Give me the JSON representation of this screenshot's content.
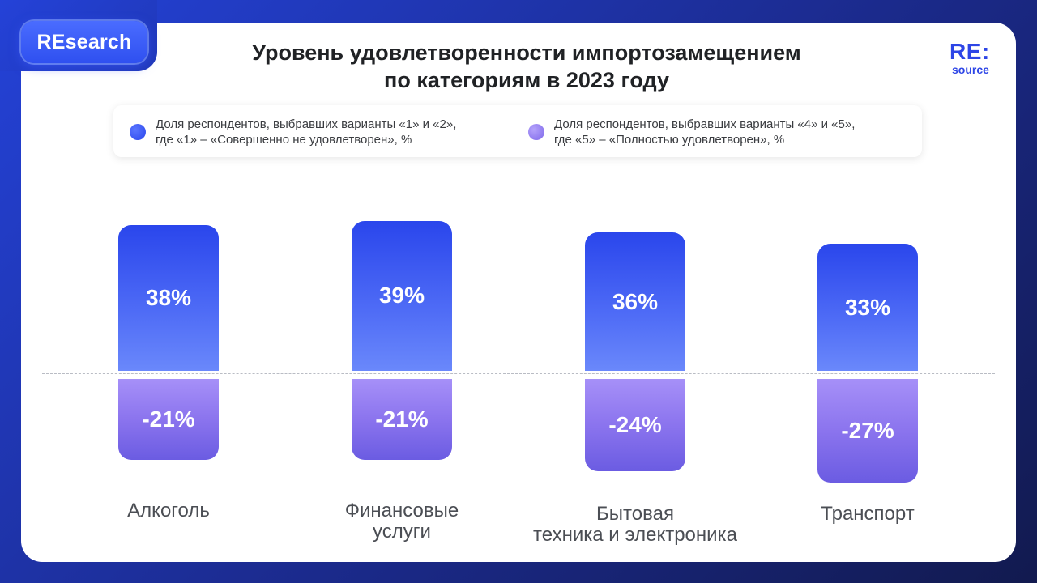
{
  "badge": "REsearch",
  "title_line1": "Уровень удовлетворенности импортозамещением",
  "title_line2": "по категориям в 2023 году",
  "logo": {
    "line1": "RE:",
    "line2": "source"
  },
  "colors": {
    "positive": "#2f4df0",
    "negative": "#8a74ee",
    "background": "#2038b8"
  },
  "legend": [
    {
      "line1": "Доля респондентов, выбравших варианты «1» и «2»,",
      "line2": "где «1» – «Совершенно не удовлетворен», %",
      "color": "#2f4df0"
    },
    {
      "line1": "Доля респондентов, выбравших варианты «4» и «5»,",
      "line2": "где «5» – «Полностью удовлетворен», %",
      "color": "#8a74ee"
    }
  ],
  "chart_data": {
    "type": "bar",
    "title": "Уровень удовлетворенности импортозамещением по категориям в 2023 году",
    "categories": [
      [
        "Алкоголь"
      ],
      [
        "Финансовые",
        "услуги"
      ],
      [
        "Бытовая",
        "техника и электроника"
      ],
      [
        "Транспорт"
      ]
    ],
    "series": [
      {
        "name": "Доля респондентов, выбравших варианты «1» и «2», где «1» – «Совершенно не удовлетворен», %",
        "values": [
          38,
          39,
          36,
          33
        ],
        "labels": [
          "38%",
          "39%",
          "36%",
          "33%"
        ]
      },
      {
        "name": "Доля респондентов, выбравших варианты «4» и «5», где «5» – «Полностью удовлетворен», %",
        "values": [
          -21,
          -21,
          -24,
          -27
        ],
        "labels": [
          "-21%",
          "-21%",
          "-24%",
          "-27%"
        ]
      }
    ],
    "baseline": 0,
    "grid": false,
    "legend_position": "top"
  }
}
